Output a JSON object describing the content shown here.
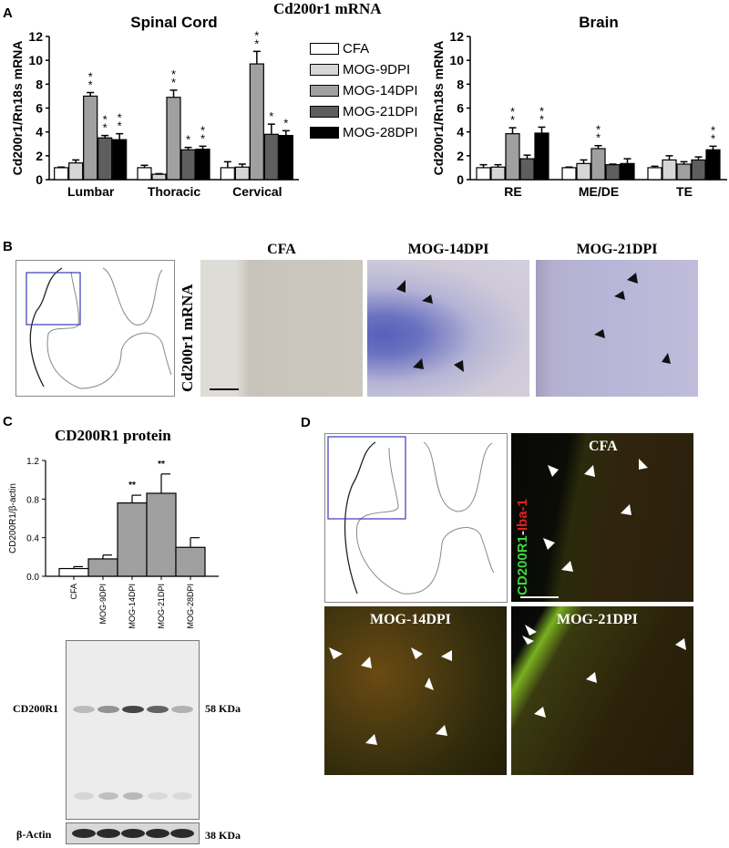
{
  "figure_title": "Cd200r1 mRNA",
  "panels": {
    "A": {
      "letter": "A"
    },
    "B": {
      "letter": "B",
      "row_label": "Cd200r1 mRNA",
      "image_titles": [
        "CFA",
        "MOG-14DPI",
        "MOG-21DPI"
      ]
    },
    "C": {
      "letter": "C",
      "title": "CD200R1 protein",
      "blot": {
        "band_label": "CD200R1",
        "band_size": "58 KDa",
        "loading_label": "β-Actin",
        "loading_size": "38 KDa",
        "lanes": 5
      }
    },
    "D": {
      "letter": "D",
      "stain_label_green": "CD200R1",
      "stain_label_sep": "-",
      "stain_label_red": "Iba-1",
      "image_titles": [
        "CFA",
        "MOG-14DPI",
        "MOG-21DPI"
      ]
    }
  },
  "legend": [
    {
      "label": "CFA",
      "color": "#ffffff"
    },
    {
      "label": "MOG-9DPI",
      "color": "#d6d6d6"
    },
    {
      "label": "MOG-14DPI",
      "color": "#a0a0a0"
    },
    {
      "label": "MOG-21DPI",
      "color": "#5e5e5e"
    },
    {
      "label": "MOG-28DPI",
      "color": "#000000"
    }
  ],
  "chart_data": [
    {
      "type": "bar",
      "title": "Spinal Cord",
      "xlabel": "",
      "ylabel": "Cd200r1/Rn18s mRNA",
      "ylim": [
        0,
        12
      ],
      "yticks": [
        0,
        2,
        4,
        6,
        8,
        10,
        12
      ],
      "categories": [
        "Lumbar",
        "Thoracic",
        "Cervical"
      ],
      "series": [
        {
          "name": "CFA",
          "values": [
            1.0,
            1.0,
            1.0
          ],
          "errors": [
            0.05,
            0.2,
            0.5
          ],
          "sig": [
            "",
            "",
            ""
          ]
        },
        {
          "name": "MOG-9DPI",
          "values": [
            1.4,
            0.45,
            1.05
          ],
          "errors": [
            0.25,
            0.05,
            0.25
          ],
          "sig": [
            "",
            "",
            ""
          ]
        },
        {
          "name": "MOG-14DPI",
          "values": [
            7.0,
            6.9,
            9.7
          ],
          "errors": [
            0.3,
            0.6,
            1.05
          ],
          "sig": [
            "**",
            "**",
            "**"
          ]
        },
        {
          "name": "MOG-21DPI",
          "values": [
            3.5,
            2.5,
            3.8
          ],
          "errors": [
            0.2,
            0.2,
            0.85
          ],
          "sig": [
            "**",
            "*",
            "*"
          ]
        },
        {
          "name": "MOG-28DPI",
          "values": [
            3.35,
            2.55,
            3.7
          ],
          "errors": [
            0.5,
            0.25,
            0.4
          ],
          "sig": [
            "**",
            "**",
            "*"
          ]
        }
      ],
      "grid": false,
      "legend_position": "right"
    },
    {
      "type": "bar",
      "title": "Brain",
      "xlabel": "",
      "ylabel": "Cd200r1/Rn18s mRNA",
      "ylim": [
        0,
        12
      ],
      "yticks": [
        0,
        2,
        4,
        6,
        8,
        10,
        12
      ],
      "categories": [
        "RE",
        "ME/DE",
        "TE"
      ],
      "series": [
        {
          "name": "CFA",
          "values": [
            1.0,
            1.0,
            1.0
          ],
          "errors": [
            0.25,
            0.05,
            0.12
          ],
          "sig": [
            "",
            "",
            ""
          ]
        },
        {
          "name": "MOG-9DPI",
          "values": [
            1.05,
            1.35,
            1.65
          ],
          "errors": [
            0.2,
            0.3,
            0.35
          ],
          "sig": [
            "",
            "",
            ""
          ]
        },
        {
          "name": "MOG-14DPI",
          "values": [
            3.85,
            2.6,
            1.3
          ],
          "errors": [
            0.5,
            0.25,
            0.2
          ],
          "sig": [
            "**",
            "**",
            ""
          ]
        },
        {
          "name": "MOG-21DPI",
          "values": [
            1.75,
            1.25,
            1.65
          ],
          "errors": [
            0.3,
            0.05,
            0.25
          ],
          "sig": [
            "",
            "",
            ""
          ]
        },
        {
          "name": "MOG-28DPI",
          "values": [
            3.9,
            1.35,
            2.5
          ],
          "errors": [
            0.5,
            0.4,
            0.3
          ],
          "sig": [
            "**",
            "",
            "**"
          ]
        }
      ],
      "grid": false
    },
    {
      "type": "bar",
      "title": "CD200R1 protein",
      "xlabel": "",
      "ylabel": "CD200R1/β-actin",
      "ylim": [
        0,
        1.2
      ],
      "yticks": [
        "0.0",
        "0.4",
        "0.8",
        "1.2"
      ],
      "categories": [
        "CFA",
        "MOG-9DPI",
        "MOG-14DPI",
        "MOG-21DPI",
        "MOG-28DPI"
      ],
      "values": [
        0.08,
        0.18,
        0.76,
        0.86,
        0.3
      ],
      "errors": [
        0.02,
        0.04,
        0.08,
        0.2,
        0.1
      ],
      "sig": [
        "",
        "",
        "**",
        "**",
        ""
      ],
      "colors": [
        "#ffffff",
        "#a0a0a0",
        "#a0a0a0",
        "#a0a0a0",
        "#a0a0a0"
      ],
      "grid": false
    }
  ]
}
